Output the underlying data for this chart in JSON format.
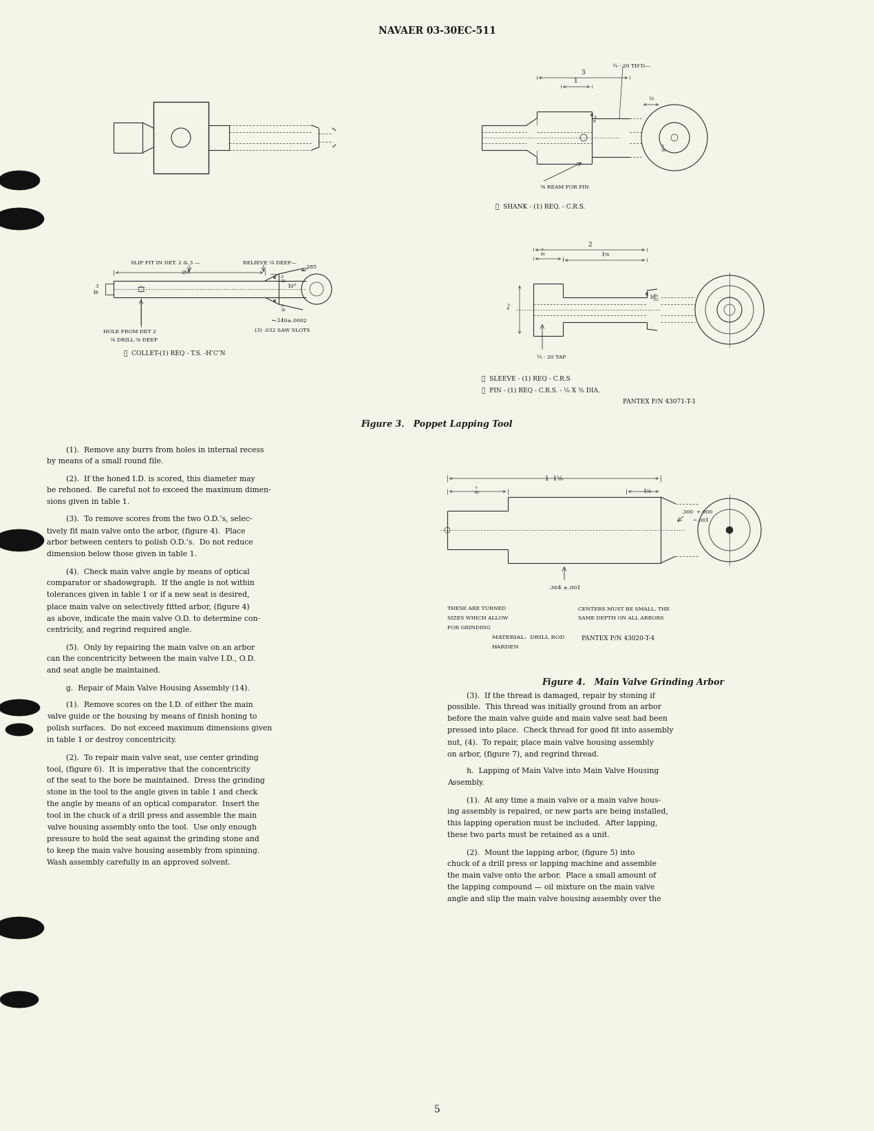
{
  "bg_color": "#F5F4E8",
  "page_color": "#F5F4E8",
  "header_text": "NAVAER 03-30EC-511",
  "page_number": "5",
  "fig3_caption": "Figure 3.   Poppet Lapping Tool",
  "fig4_caption": "Figure 4.   Main Valve Grinding Arbor",
  "text_color": "#1a1a1a",
  "line_color": "#2a2a2a"
}
